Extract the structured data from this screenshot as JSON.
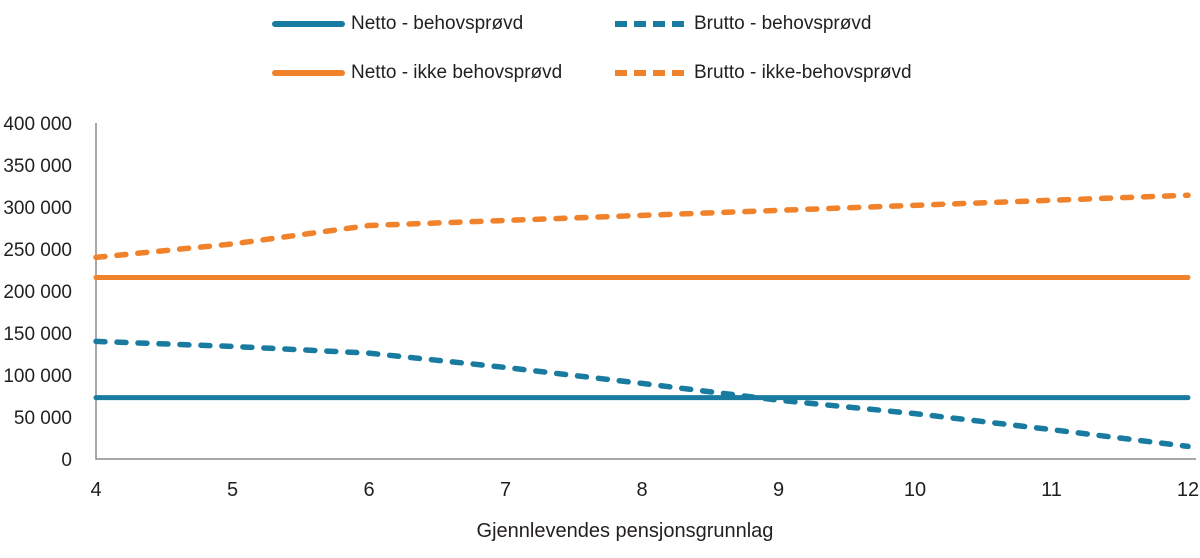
{
  "chart_data": {
    "type": "line",
    "x": [
      4,
      5,
      6,
      7,
      8,
      9,
      10,
      11,
      12
    ],
    "xtick_labels": [
      "4",
      "5",
      "6",
      "7",
      "8",
      "9",
      "10",
      "11",
      "12"
    ],
    "xlabel": "Gjennlevendes pensjonsgrunnlag",
    "ylabel": "",
    "ylim": [
      0,
      400000
    ],
    "ytick_values": [
      0,
      50000,
      100000,
      150000,
      200000,
      250000,
      300000,
      350000,
      400000
    ],
    "ytick_labels": [
      "0",
      "50 000",
      "100 000",
      "150 000",
      "200 000",
      "250 000",
      "300 000",
      "350 000",
      "400 000"
    ],
    "grid": false,
    "legend_position": "top",
    "axis_color": "#8c8c8c",
    "series": [
      {
        "name": "Netto - behovsprøvd",
        "color": "#1a7ba0",
        "dash": false,
        "values": [
          73000,
          73000,
          73000,
          73000,
          73000,
          73000,
          73000,
          73000,
          73000
        ]
      },
      {
        "name": "Brutto - behovsprøvd",
        "color": "#1a7ba0",
        "dash": true,
        "values": [
          140000,
          134000,
          126000,
          109000,
          90000,
          70000,
          54000,
          35000,
          15000
        ]
      },
      {
        "name": "Netto - ikke behovsprøvd",
        "color": "#f0822c",
        "dash": false,
        "values": [
          216000,
          216000,
          216000,
          216000,
          216000,
          216000,
          216000,
          216000,
          216000
        ]
      },
      {
        "name": "Brutto - ikke-behovsprøvd",
        "color": "#f0822c",
        "dash": true,
        "values": [
          240000,
          256000,
          278000,
          284000,
          290000,
          296000,
          302000,
          308000,
          314000
        ]
      }
    ]
  }
}
